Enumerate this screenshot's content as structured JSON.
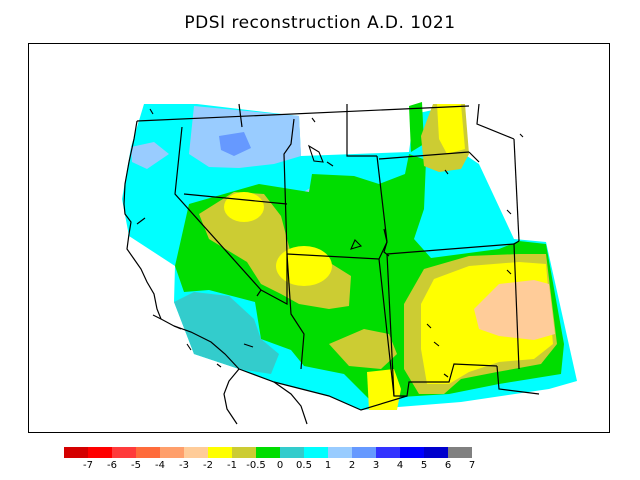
{
  "title": "PDSI reconstruction A.D. 1021",
  "colorbar": {
    "colors": [
      "#d40000",
      "#ff0000",
      "#ff3b3b",
      "#ff6b3b",
      "#ff9f6b",
      "#ffcc99",
      "#ffff00",
      "#cccc33",
      "#00dd00",
      "#33cccc",
      "#00ffff",
      "#99ccff",
      "#6699ff",
      "#3333ff",
      "#0000ff",
      "#0000cc",
      "#808080"
    ],
    "tick_labels": [
      "-7",
      "-6",
      "-5",
      "-4",
      "-3",
      "-2",
      "-1",
      "-0.5",
      "0",
      "0.5",
      "1",
      "2",
      "3",
      "4",
      "5",
      "6",
      "7"
    ]
  }
}
